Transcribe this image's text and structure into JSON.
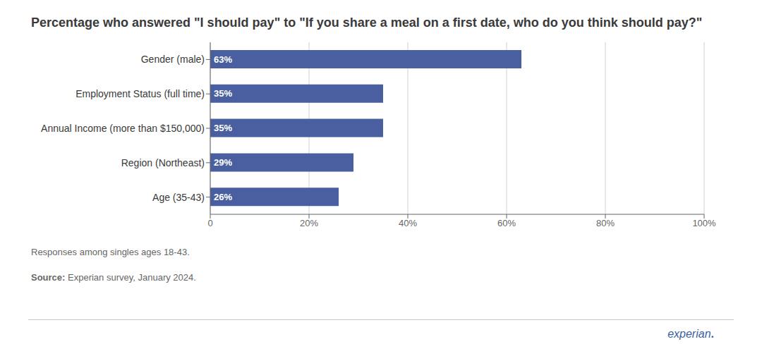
{
  "chart_data": {
    "type": "bar",
    "orientation": "horizontal",
    "title": "Percentage who answered \"I should pay\" to \"If you share a meal on a first date, who do you think should pay?\"",
    "categories": [
      "Gender (male)",
      "Employment Status (full time)",
      "Annual Income (more than $150,000)",
      "Region (Northeast)",
      "Age (35-43)"
    ],
    "values": [
      63,
      35,
      35,
      29,
      26
    ],
    "value_labels": [
      "63%",
      "35%",
      "35%",
      "29%",
      "26%"
    ],
    "data_labels": true,
    "color": "#4a5fa0",
    "xlim": [
      0,
      100
    ],
    "xticks": [
      0,
      {
        "value": 20,
        "label": "20%"
      },
      {
        "value": 40,
        "label": "40%"
      },
      {
        "value": 60,
        "label": "60%"
      },
      {
        "value": 80,
        "label": "80%"
      },
      {
        "value": 100,
        "label": "100%"
      }
    ],
    "grid": true,
    "annotations": [
      "Responses among singles ages 18-43.",
      "Source: Experian survey, January 2024.",
      "experian."
    ]
  }
}
